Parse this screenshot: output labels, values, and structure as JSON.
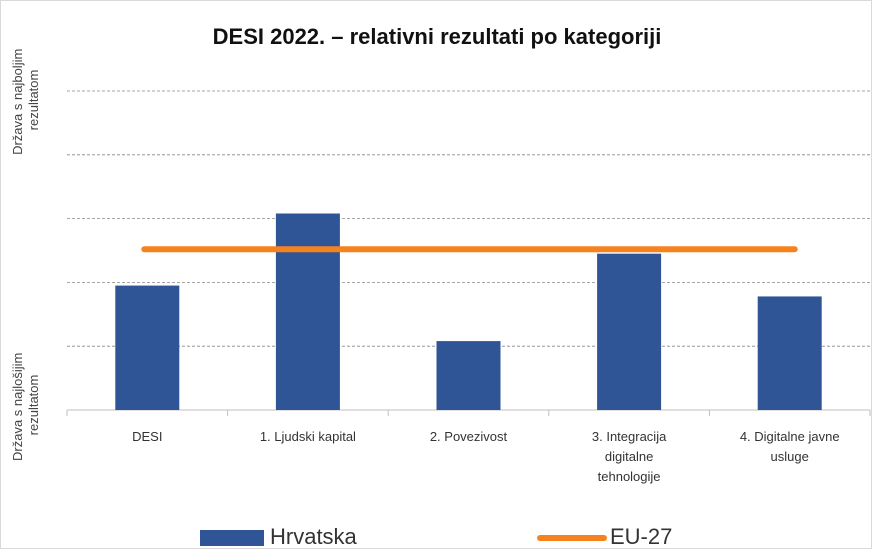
{
  "chart_data": {
    "type": "bar-line",
    "title": "DESI 2022. – relativni rezultati po kategoriji",
    "y_label_top": [
      "Država s najboljim",
      "rezultatom"
    ],
    "y_label_bottom": [
      "Država s najlošijim",
      "rezultatom"
    ],
    "categories": [
      "DESI",
      "1. Ljudski kapital",
      "2. Povezivost",
      "3. Integracija digitalne tehnologije",
      "4. Digitalne javne usluge"
    ],
    "series": [
      {
        "name": "Hrvatska",
        "type": "bar",
        "color": "#2f5597",
        "values": [
          1.95,
          3.08,
          1.08,
          2.45,
          1.78
        ]
      },
      {
        "name": "EU-27",
        "type": "line",
        "color": "#f5821f",
        "values": [
          2.52,
          2.52,
          2.52,
          2.52,
          2.52
        ]
      }
    ],
    "ylim": [
      0,
      5
    ],
    "yticks": [
      0,
      1,
      2,
      3,
      4,
      5
    ],
    "grid": true,
    "legend": "bottom"
  }
}
